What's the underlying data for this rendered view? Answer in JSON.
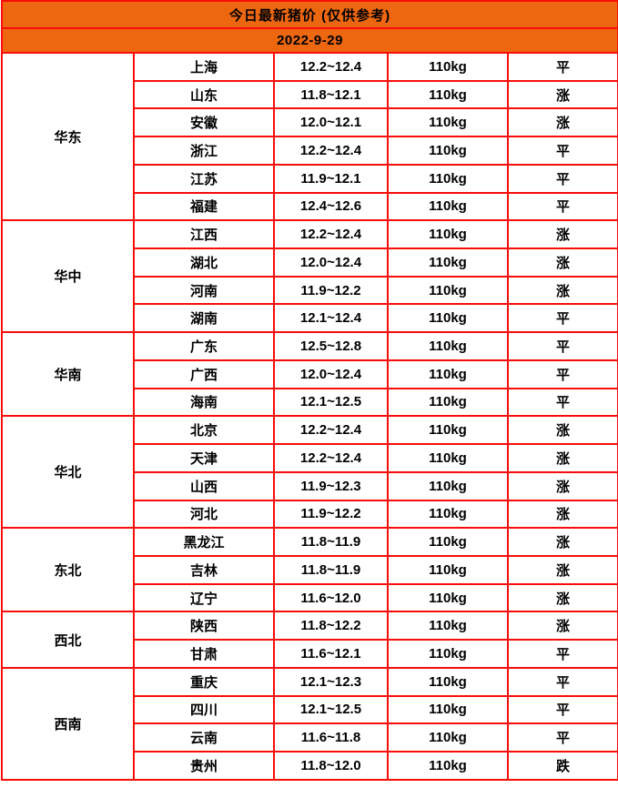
{
  "header": {
    "title": "今日最新猪价 (仅供参考)",
    "date": "2022-9-29"
  },
  "colors": {
    "header_bg": "#ED6711",
    "border": "#F90D09",
    "header_underline": "#4D4D4D",
    "trend_up": "#FB333B",
    "trend_down": "#0BD300",
    "trend_flat": "#000000"
  },
  "columns": {
    "region": "region",
    "province": "province",
    "price_range": "price_range",
    "weight": "weight",
    "trend": "trend"
  },
  "groups": [
    {
      "region": "华东",
      "rows": [
        {
          "province": "上海",
          "price": "12.2~12.4",
          "weight": "110kg",
          "trend": "平",
          "trend_type": "flat"
        },
        {
          "province": "山东",
          "price": "11.8~12.1",
          "weight": "110kg",
          "trend": "涨",
          "trend_type": "up"
        },
        {
          "province": "安徽",
          "price": "12.0~12.1",
          "weight": "110kg",
          "trend": "涨",
          "trend_type": "up"
        },
        {
          "province": "浙江",
          "price": "12.2~12.4",
          "weight": "110kg",
          "trend": "平",
          "trend_type": "flat"
        },
        {
          "province": "江苏",
          "price": "11.9~12.1",
          "weight": "110kg",
          "trend": "平",
          "trend_type": "flat"
        },
        {
          "province": "福建",
          "price": "12.4~12.6",
          "weight": "110kg",
          "trend": "平",
          "trend_type": "flat"
        }
      ]
    },
    {
      "region": "华中",
      "rows": [
        {
          "province": "江西",
          "price": "12.2~12.4",
          "weight": "110kg",
          "trend": "涨",
          "trend_type": "up"
        },
        {
          "province": "湖北",
          "price": "12.0~12.4",
          "weight": "110kg",
          "trend": "涨",
          "trend_type": "up"
        },
        {
          "province": "河南",
          "price": "11.9~12.2",
          "weight": "110kg",
          "trend": "涨",
          "trend_type": "up"
        },
        {
          "province": "湖南",
          "price": "12.1~12.4",
          "weight": "110kg",
          "trend": "平",
          "trend_type": "flat"
        }
      ]
    },
    {
      "region": "华南",
      "rows": [
        {
          "province": "广东",
          "price": "12.5~12.8",
          "weight": "110kg",
          "trend": "平",
          "trend_type": "flat"
        },
        {
          "province": "广西",
          "price": "12.0~12.4",
          "weight": "110kg",
          "trend": "平",
          "trend_type": "flat"
        },
        {
          "province": "海南",
          "price": "12.1~12.5",
          "weight": "110kg",
          "trend": "平",
          "trend_type": "flat"
        }
      ]
    },
    {
      "region": "华北",
      "rows": [
        {
          "province": "北京",
          "price": "12.2~12.4",
          "weight": "110kg",
          "trend": "涨",
          "trend_type": "up"
        },
        {
          "province": "天津",
          "price": "12.2~12.4",
          "weight": "110kg",
          "trend": "涨",
          "trend_type": "up"
        },
        {
          "province": "山西",
          "price": "11.9~12.3",
          "weight": "110kg",
          "trend": "涨",
          "trend_type": "up"
        },
        {
          "province": "河北",
          "price": "11.9~12.2",
          "weight": "110kg",
          "trend": "涨",
          "trend_type": "up"
        }
      ]
    },
    {
      "region": "东北",
      "rows": [
        {
          "province": "黑龙江",
          "price": "11.8~11.9",
          "weight": "110kg",
          "trend": "涨",
          "trend_type": "up"
        },
        {
          "province": "吉林",
          "price": "11.8~11.9",
          "weight": "110kg",
          "trend": "涨",
          "trend_type": "up"
        },
        {
          "province": "辽宁",
          "price": "11.6~12.0",
          "weight": "110kg",
          "trend": "涨",
          "trend_type": "up"
        }
      ]
    },
    {
      "region": "西北",
      "rows": [
        {
          "province": "陕西",
          "price": "11.8~12.2",
          "weight": "110kg",
          "trend": "涨",
          "trend_type": "up"
        },
        {
          "province": "甘肃",
          "price": "11.6~12.1",
          "weight": "110kg",
          "trend": "平",
          "trend_type": "flat"
        }
      ]
    },
    {
      "region": "西南",
      "rows": [
        {
          "province": "重庆",
          "price": "12.1~12.3",
          "weight": "110kg",
          "trend": "平",
          "trend_type": "flat"
        },
        {
          "province": "四川",
          "price": "12.1~12.5",
          "weight": "110kg",
          "trend": "平",
          "trend_type": "flat"
        },
        {
          "province": "云南",
          "price": "11.6~11.8",
          "weight": "110kg",
          "trend": "平",
          "trend_type": "flat"
        },
        {
          "province": "贵州",
          "price": "11.8~12.0",
          "weight": "110kg",
          "trend": "跌",
          "trend_type": "down"
        }
      ]
    }
  ]
}
